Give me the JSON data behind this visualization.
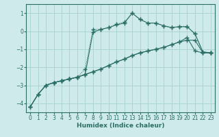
{
  "xlabel": "Humidex (Indice chaleur)",
  "xlim": [
    -0.5,
    23.5
  ],
  "ylim": [
    -4.5,
    1.5
  ],
  "yticks": [
    1,
    0,
    -1,
    -2,
    -3,
    -4
  ],
  "xticks": [
    0,
    1,
    2,
    3,
    4,
    5,
    6,
    7,
    8,
    9,
    10,
    11,
    12,
    13,
    14,
    15,
    16,
    17,
    18,
    19,
    20,
    21,
    22,
    23
  ],
  "bg_color": "#ceeaea",
  "line_color": "#2a6e65",
  "grid_color": "#a8d0cc",
  "lines": [
    {
      "x": [
        0,
        1,
        2,
        3,
        4,
        5,
        6,
        7,
        8,
        9,
        10,
        11,
        12,
        13,
        14,
        15,
        16,
        17,
        18,
        19,
        20,
        21,
        22,
        23
      ],
      "y": [
        -4.2,
        -3.5,
        -3.0,
        -2.85,
        -2.75,
        -2.65,
        -2.55,
        -2.4,
        -0.05,
        0.1,
        0.2,
        0.35,
        0.45,
        1.0,
        0.65,
        0.45,
        0.45,
        0.3,
        0.2,
        0.25,
        0.25,
        -0.15,
        -1.15,
        -1.2
      ],
      "style": "-",
      "marker": "+"
    },
    {
      "x": [
        3,
        4,
        5,
        6,
        7,
        8,
        9,
        10,
        11,
        12,
        13,
        14,
        15,
        16,
        17,
        18,
        19,
        20,
        21,
        22,
        23
      ],
      "y": [
        -2.85,
        -2.75,
        -2.65,
        -2.55,
        -2.1,
        0.1,
        0.1,
        0.2,
        0.4,
        0.5,
        1.0,
        0.65,
        0.45,
        0.45,
        0.3,
        0.2,
        0.25,
        0.25,
        -0.15,
        -1.15,
        -1.2
      ],
      "style": ":",
      "marker": "+"
    },
    {
      "x": [
        0,
        1,
        2,
        3,
        4,
        5,
        6,
        7,
        8,
        9,
        10,
        11,
        12,
        13,
        14,
        15,
        16,
        17,
        18,
        19,
        20,
        21,
        22,
        23
      ],
      "y": [
        -4.2,
        -3.5,
        -3.0,
        -2.85,
        -2.75,
        -2.65,
        -2.55,
        -2.4,
        -2.25,
        -2.1,
        -1.9,
        -1.7,
        -1.55,
        -1.35,
        -1.2,
        -1.1,
        -1.0,
        -0.9,
        -0.75,
        -0.6,
        -0.35,
        -1.1,
        -1.2,
        -1.2
      ],
      "style": "-",
      "marker": "+"
    },
    {
      "x": [
        0,
        1,
        2,
        3,
        4,
        5,
        6,
        7,
        8,
        9,
        10,
        11,
        12,
        13,
        14,
        15,
        16,
        17,
        18,
        19,
        20,
        21,
        22,
        23
      ],
      "y": [
        -4.2,
        -3.5,
        -3.0,
        -2.85,
        -2.75,
        -2.65,
        -2.55,
        -2.4,
        -2.25,
        -2.1,
        -1.9,
        -1.7,
        -1.55,
        -1.35,
        -1.2,
        -1.1,
        -1.0,
        -0.9,
        -0.75,
        -0.6,
        -0.5,
        -0.5,
        -1.2,
        -1.2
      ],
      "style": "-",
      "marker": "+"
    }
  ]
}
